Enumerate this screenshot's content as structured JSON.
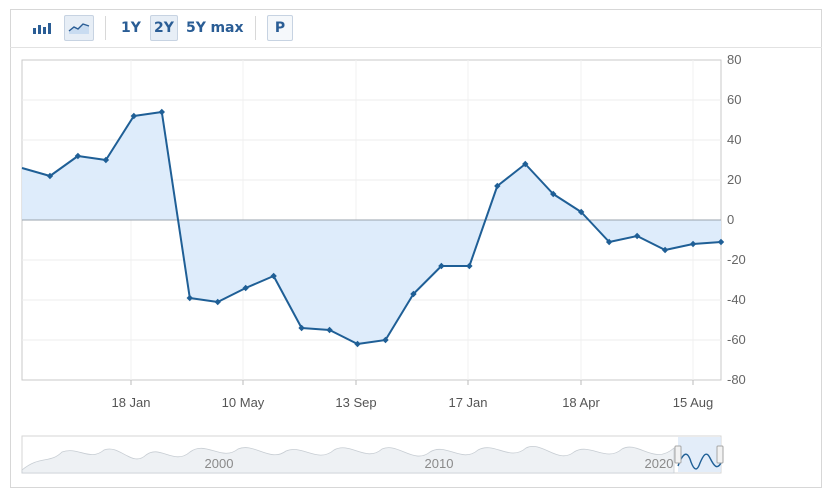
{
  "toolbar": {
    "bar_chart_icon": "bar-chart-icon",
    "line_chart_icon": "line-chart-icon",
    "range_1y": "1Y",
    "range_2y": "2Y",
    "range_5y": "5Y",
    "range_max": "max",
    "period_button": "P",
    "selected_range": "2Y"
  },
  "chart_data": {
    "type": "area",
    "title": "",
    "xlabel": "",
    "ylabel": "",
    "ylim": [
      -80,
      80
    ],
    "yticks": [
      80,
      60,
      40,
      20,
      0,
      -20,
      -40,
      -60,
      -80
    ],
    "xtick_labels": [
      "18 Jan",
      "10 May",
      "13 Sep",
      "17 Jan",
      "18 Apr",
      "15 Aug"
    ],
    "grid": true,
    "fill_color": "#dcebfb",
    "line_color": "#1f5f96",
    "values": [
      26,
      22,
      32,
      30,
      52,
      54,
      -39,
      -41,
      -34,
      -28,
      -54,
      -55,
      -62,
      -60,
      -37,
      -23,
      -23,
      17,
      28,
      13,
      4,
      -11,
      -8,
      -15,
      -12,
      -11
    ]
  },
  "navigator": {
    "year_labels": [
      "2000",
      "2010",
      "2020"
    ]
  }
}
